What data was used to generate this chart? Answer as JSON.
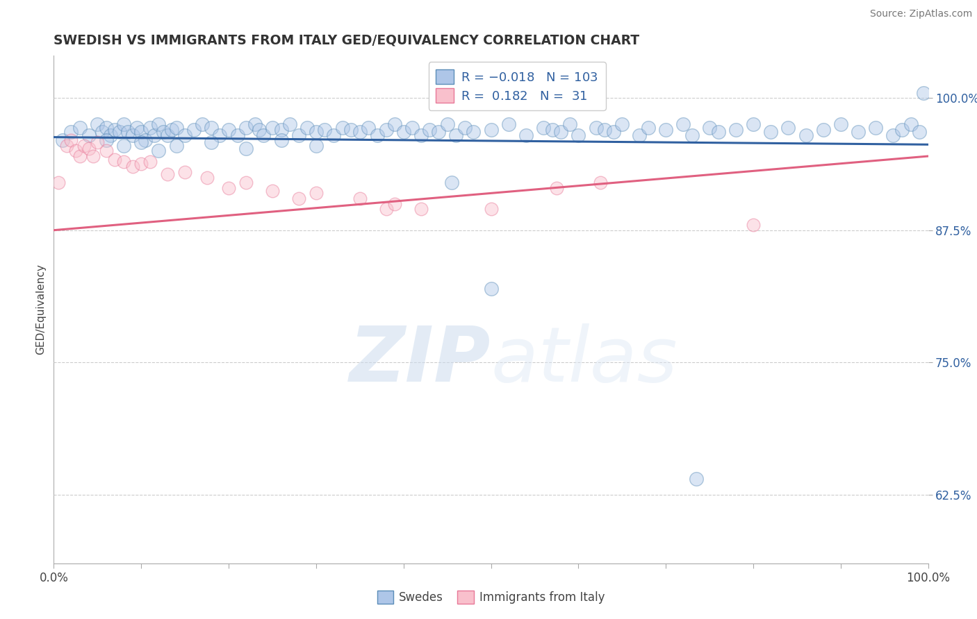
{
  "title": "SWEDISH VS IMMIGRANTS FROM ITALY GED/EQUIVALENCY CORRELATION CHART",
  "source": "Source: ZipAtlas.com",
  "ylabel": "GED/Equivalency",
  "xlim": [
    0.0,
    1.0
  ],
  "ylim": [
    0.56,
    1.04
  ],
  "yticks": [
    0.625,
    0.75,
    0.875,
    1.0
  ],
  "ytick_labels": [
    "62.5%",
    "75.0%",
    "87.5%",
    "100.0%"
  ],
  "xtick_positions": [
    0.0,
    0.1,
    0.2,
    0.3,
    0.4,
    0.5,
    0.6,
    0.7,
    0.8,
    0.9,
    1.0
  ],
  "xtick_edge_labels": [
    "0.0%",
    "100.0%"
  ],
  "blue_R": "-0.018",
  "blue_N": "103",
  "pink_R": "0.182",
  "pink_N": "31",
  "blue_color": "#aec6e8",
  "blue_edge_color": "#5b8db8",
  "pink_color": "#f9c0cc",
  "pink_edge_color": "#e87898",
  "legend_label_blue": "Swedes",
  "legend_label_pink": "Immigrants from Italy",
  "blue_line_color": "#3060a0",
  "pink_line_color": "#e06080",
  "blue_line_x": [
    0.0,
    1.0
  ],
  "blue_line_y": [
    0.963,
    0.956
  ],
  "pink_line_x": [
    0.0,
    1.0
  ],
  "pink_line_y": [
    0.875,
    0.945
  ],
  "blue_points_x": [
    0.01,
    0.02,
    0.03,
    0.04,
    0.05,
    0.055,
    0.06,
    0.065,
    0.07,
    0.075,
    0.08,
    0.085,
    0.09,
    0.095,
    0.1,
    0.105,
    0.11,
    0.115,
    0.12,
    0.125,
    0.13,
    0.135,
    0.14,
    0.15,
    0.16,
    0.17,
    0.18,
    0.19,
    0.2,
    0.21,
    0.22,
    0.23,
    0.235,
    0.24,
    0.25,
    0.26,
    0.27,
    0.28,
    0.29,
    0.3,
    0.31,
    0.32,
    0.33,
    0.34,
    0.35,
    0.36,
    0.37,
    0.38,
    0.39,
    0.4,
    0.41,
    0.42,
    0.43,
    0.44,
    0.45,
    0.46,
    0.47,
    0.48,
    0.5,
    0.52,
    0.54,
    0.56,
    0.57,
    0.58,
    0.59,
    0.6,
    0.62,
    0.63,
    0.64,
    0.65,
    0.67,
    0.68,
    0.7,
    0.72,
    0.73,
    0.75,
    0.76,
    0.78,
    0.8,
    0.82,
    0.84,
    0.86,
    0.88,
    0.9,
    0.92,
    0.94,
    0.96,
    0.97,
    0.98,
    0.99,
    0.995,
    0.06,
    0.08,
    0.1,
    0.12,
    0.14,
    0.18,
    0.22,
    0.26,
    0.3,
    0.455,
    0.5,
    0.735
  ],
  "blue_points_y": [
    0.96,
    0.968,
    0.972,
    0.965,
    0.975,
    0.968,
    0.972,
    0.965,
    0.97,
    0.968,
    0.975,
    0.968,
    0.965,
    0.972,
    0.968,
    0.96,
    0.972,
    0.965,
    0.975,
    0.968,
    0.965,
    0.97,
    0.972,
    0.965,
    0.97,
    0.975,
    0.972,
    0.965,
    0.97,
    0.965,
    0.972,
    0.975,
    0.97,
    0.965,
    0.972,
    0.97,
    0.975,
    0.965,
    0.972,
    0.968,
    0.97,
    0.965,
    0.972,
    0.97,
    0.968,
    0.972,
    0.965,
    0.97,
    0.975,
    0.968,
    0.972,
    0.965,
    0.97,
    0.968,
    0.975,
    0.965,
    0.972,
    0.968,
    0.97,
    0.975,
    0.965,
    0.972,
    0.97,
    0.968,
    0.975,
    0.965,
    0.972,
    0.97,
    0.968,
    0.975,
    0.965,
    0.972,
    0.97,
    0.975,
    0.965,
    0.972,
    0.968,
    0.97,
    0.975,
    0.968,
    0.972,
    0.965,
    0.97,
    0.975,
    0.968,
    0.972,
    0.965,
    0.97,
    0.975,
    0.968,
    1.005,
    0.96,
    0.955,
    0.958,
    0.95,
    0.955,
    0.958,
    0.952,
    0.96,
    0.955,
    0.92,
    0.82,
    0.64
  ],
  "pink_points_x": [
    0.005,
    0.015,
    0.02,
    0.025,
    0.03,
    0.035,
    0.04,
    0.045,
    0.05,
    0.06,
    0.07,
    0.08,
    0.09,
    0.1,
    0.11,
    0.13,
    0.15,
    0.175,
    0.2,
    0.22,
    0.25,
    0.28,
    0.3,
    0.35,
    0.38,
    0.39,
    0.42,
    0.5,
    0.575,
    0.625,
    0.8
  ],
  "pink_points_y": [
    0.92,
    0.955,
    0.96,
    0.95,
    0.945,
    0.955,
    0.952,
    0.945,
    0.958,
    0.95,
    0.942,
    0.94,
    0.935,
    0.938,
    0.94,
    0.928,
    0.93,
    0.925,
    0.915,
    0.92,
    0.912,
    0.905,
    0.91,
    0.905,
    0.895,
    0.9,
    0.895,
    0.895,
    0.915,
    0.92,
    0.88
  ],
  "watermark_zip": "ZIP",
  "watermark_atlas": "atlas",
  "dot_size_blue": 200,
  "dot_size_pink": 180,
  "dot_alpha": 0.45
}
